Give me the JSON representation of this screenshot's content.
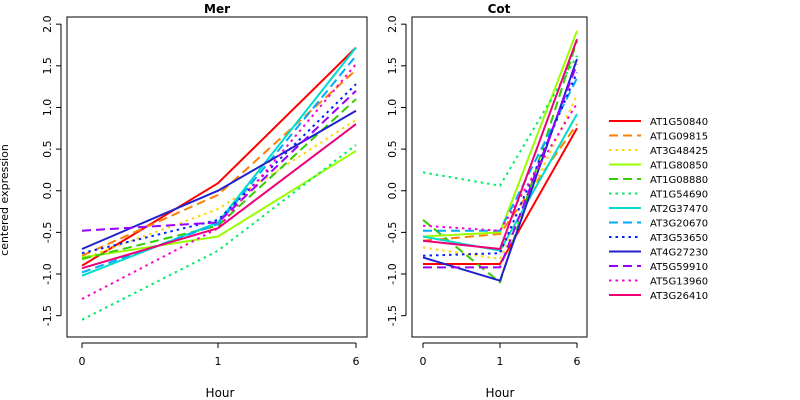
{
  "chart_data": [
    {
      "type": "line",
      "title": "Mer",
      "xlabel": "Hour",
      "ylabel": "centered expression",
      "x": [
        "0",
        "1",
        "6"
      ],
      "ylim": [
        -1.6,
        2.05
      ],
      "yticks": [
        "-1.5",
        "-1.0",
        "-0.5",
        "0.0",
        "0.5",
        "1.0",
        "1.5",
        "2.0"
      ],
      "series": [
        {
          "name": "AT1G50840",
          "color": "#ff0000",
          "dash": "solid",
          "values": [
            -0.9,
            0.09,
            1.72
          ]
        },
        {
          "name": "AT1G09815",
          "color": "#ff8000",
          "dash": "dashed",
          "values": [
            -0.78,
            -0.05,
            1.45
          ]
        },
        {
          "name": "AT3G48425",
          "color": "#ffd700",
          "dash": "dotted",
          "values": [
            -0.82,
            -0.22,
            0.85
          ]
        },
        {
          "name": "AT1G80850",
          "color": "#99ff00",
          "dash": "solid",
          "values": [
            -0.8,
            -0.55,
            0.48
          ]
        },
        {
          "name": "AT1G08880",
          "color": "#33cc00",
          "dash": "dashed",
          "values": [
            -0.82,
            -0.42,
            1.1
          ]
        },
        {
          "name": "AT1G54690",
          "color": "#00ee66",
          "dash": "dotted",
          "values": [
            -1.55,
            -0.72,
            0.55
          ]
        },
        {
          "name": "AT2G37470",
          "color": "#00ddcc",
          "dash": "solid",
          "values": [
            -1.02,
            -0.38,
            1.72
          ]
        },
        {
          "name": "AT3G20670",
          "color": "#00aaff",
          "dash": "dashed",
          "values": [
            -0.98,
            -0.4,
            1.62
          ]
        },
        {
          "name": "AT3G53650",
          "color": "#0022ff",
          "dash": "dotted",
          "values": [
            -0.75,
            -0.35,
            1.28
          ]
        },
        {
          "name": "AT4G27230",
          "color": "#2222cc",
          "dash": "solid",
          "values": [
            -0.7,
            0.0,
            0.96
          ]
        },
        {
          "name": "AT5G59910",
          "color": "#9900ff",
          "dash": "dashed",
          "values": [
            -0.48,
            -0.38,
            1.2
          ]
        },
        {
          "name": "AT5G13960",
          "color": "#ff00cc",
          "dash": "dotted",
          "values": [
            -1.3,
            -0.45,
            1.52
          ]
        },
        {
          "name": "AT3G26410",
          "color": "#ee0077",
          "dash": "solid",
          "values": [
            -0.93,
            -0.45,
            0.8
          ]
        }
      ]
    },
    {
      "type": "line",
      "title": "Cot",
      "xlabel": "Hour",
      "ylabel": "",
      "x": [
        "0",
        "1",
        "6"
      ],
      "ylim": [
        -1.6,
        2.05
      ],
      "yticks": [
        "-1.5",
        "-1.0",
        "-0.5",
        "0.0",
        "0.5",
        "1.0",
        "1.5",
        "2.0"
      ],
      "series": [
        {
          "name": "AT1G50840",
          "color": "#ff0000",
          "dash": "solid",
          "values": [
            -0.88,
            -0.88,
            0.75
          ]
        },
        {
          "name": "AT1G09815",
          "color": "#ff8000",
          "dash": "dashed",
          "values": [
            -0.6,
            -0.52,
            0.8
          ]
        },
        {
          "name": "AT3G48425",
          "color": "#ffd700",
          "dash": "dotted",
          "values": [
            -0.68,
            -0.82,
            1.15
          ]
        },
        {
          "name": "AT1G80850",
          "color": "#99ff00",
          "dash": "solid",
          "values": [
            -0.55,
            -0.5,
            1.92
          ]
        },
        {
          "name": "AT1G08880",
          "color": "#33cc00",
          "dash": "dashed",
          "values": [
            -0.35,
            -1.1,
            1.8
          ]
        },
        {
          "name": "AT1G54690",
          "color": "#00ee66",
          "dash": "dotted",
          "values": [
            0.22,
            0.06,
            1.62
          ]
        },
        {
          "name": "AT2G37470",
          "color": "#00ddcc",
          "dash": "solid",
          "values": [
            -0.55,
            -0.72,
            0.92
          ]
        },
        {
          "name": "AT3G20670",
          "color": "#00aaff",
          "dash": "dashed",
          "values": [
            -0.48,
            -0.48,
            1.35
          ]
        },
        {
          "name": "AT3G53650",
          "color": "#0022ff",
          "dash": "dotted",
          "values": [
            -0.78,
            -0.75,
            1.42
          ]
        },
        {
          "name": "AT4G27230",
          "color": "#2222cc",
          "dash": "solid",
          "values": [
            -0.8,
            -1.08,
            1.58
          ]
        },
        {
          "name": "AT5G59910",
          "color": "#9900ff",
          "dash": "dashed",
          "values": [
            -0.92,
            -0.92,
            1.52
          ]
        },
        {
          "name": "AT5G13960",
          "color": "#ff00cc",
          "dash": "dotted",
          "values": [
            -0.42,
            -0.48,
            1.05
          ]
        },
        {
          "name": "AT3G26410",
          "color": "#ee0077",
          "dash": "solid",
          "values": [
            -0.6,
            -0.7,
            1.82
          ]
        }
      ]
    }
  ]
}
